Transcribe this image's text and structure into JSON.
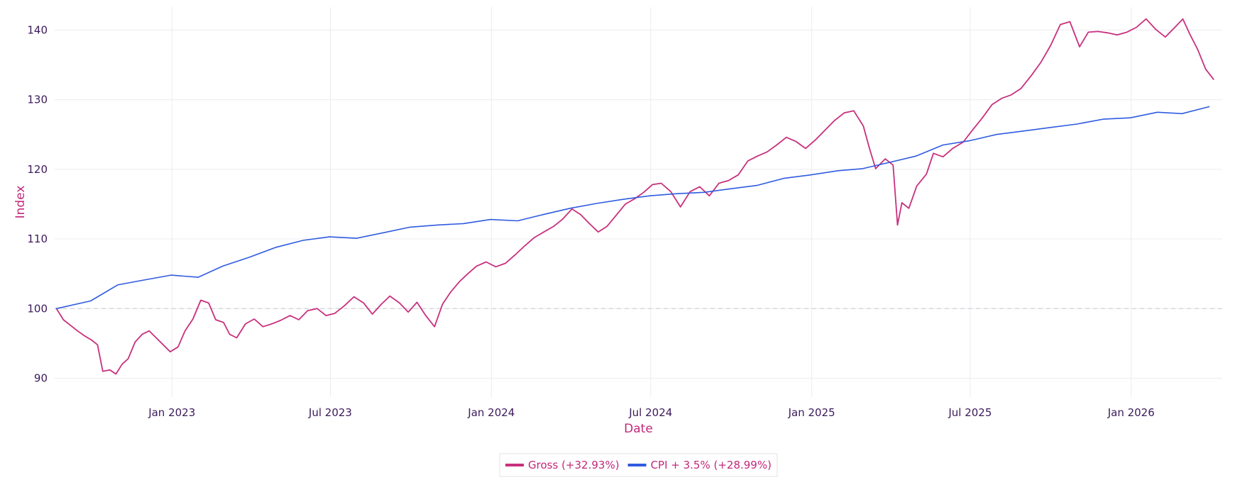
{
  "chart_data": {
    "type": "line",
    "xlabel": "Date",
    "ylabel": "Index",
    "x_tick_labels": [
      "Jan 2023",
      "Jul 2023",
      "Jan 2024",
      "Jul 2024",
      "Jan 2025",
      "Jul 2025",
      "Jan 2026"
    ],
    "x_ticks": [
      "2023-01-01",
      "2023-07-01",
      "2024-01-01",
      "2024-07-01",
      "2025-01-01",
      "2025-07-01",
      "2026-01-01"
    ],
    "xlim": [
      "2022-08-20",
      "2026-04-15"
    ],
    "y_ticks": [
      90,
      100,
      110,
      120,
      130,
      140
    ],
    "ylim": [
      87.3,
      143.3
    ],
    "reference_line": {
      "y": 100,
      "style": "dashed"
    },
    "grid": true,
    "legend_position": "bottom-center",
    "series": [
      {
        "name": "Gross (+32.93%)",
        "color": "#c8307d",
        "points": [
          [
            "2022-08-22",
            100.0
          ],
          [
            "2022-08-30",
            98.4
          ],
          [
            "2022-09-07",
            97.6
          ],
          [
            "2022-09-15",
            96.8
          ],
          [
            "2022-09-23",
            96.1
          ],
          [
            "2022-10-01",
            95.5
          ],
          [
            "2022-10-08",
            94.8
          ],
          [
            "2022-10-14",
            91.0
          ],
          [
            "2022-10-22",
            91.2
          ],
          [
            "2022-10-29",
            90.6
          ],
          [
            "2022-11-05",
            92.0
          ],
          [
            "2022-11-12",
            92.8
          ],
          [
            "2022-11-20",
            95.2
          ],
          [
            "2022-11-28",
            96.3
          ],
          [
            "2022-12-06",
            96.8
          ],
          [
            "2022-12-14",
            95.8
          ],
          [
            "2022-12-22",
            94.8
          ],
          [
            "2022-12-30",
            93.8
          ],
          [
            "2023-01-08",
            94.5
          ],
          [
            "2023-01-16",
            96.8
          ],
          [
            "2023-01-25",
            98.5
          ],
          [
            "2023-02-03",
            101.2
          ],
          [
            "2023-02-12",
            100.8
          ],
          [
            "2023-02-20",
            98.4
          ],
          [
            "2023-03-01",
            98.0
          ],
          [
            "2023-03-08",
            96.3
          ],
          [
            "2023-03-16",
            95.8
          ],
          [
            "2023-03-26",
            97.8
          ],
          [
            "2023-04-05",
            98.5
          ],
          [
            "2023-04-15",
            97.4
          ],
          [
            "2023-04-25",
            97.8
          ],
          [
            "2023-05-05",
            98.3
          ],
          [
            "2023-05-16",
            99.0
          ],
          [
            "2023-05-26",
            98.4
          ],
          [
            "2023-06-05",
            99.7
          ],
          [
            "2023-06-16",
            100.0
          ],
          [
            "2023-06-26",
            99.0
          ],
          [
            "2023-07-06",
            99.3
          ],
          [
            "2023-07-17",
            100.4
          ],
          [
            "2023-07-28",
            101.7
          ],
          [
            "2023-08-08",
            100.8
          ],
          [
            "2023-08-18",
            99.2
          ],
          [
            "2023-08-28",
            100.6
          ],
          [
            "2023-09-07",
            101.8
          ],
          [
            "2023-09-18",
            100.8
          ],
          [
            "2023-09-28",
            99.5
          ],
          [
            "2023-10-08",
            100.9
          ],
          [
            "2023-10-18",
            99.0
          ],
          [
            "2023-10-28",
            97.4
          ],
          [
            "2023-11-06",
            100.6
          ],
          [
            "2023-11-15",
            102.3
          ],
          [
            "2023-11-25",
            103.8
          ],
          [
            "2023-12-05",
            105.0
          ],
          [
            "2023-12-15",
            106.1
          ],
          [
            "2023-12-26",
            106.7
          ],
          [
            "2024-01-06",
            106.0
          ],
          [
            "2024-01-17",
            106.5
          ],
          [
            "2024-01-28",
            107.7
          ],
          [
            "2024-02-08",
            109.0
          ],
          [
            "2024-02-19",
            110.2
          ],
          [
            "2024-03-01",
            111.0
          ],
          [
            "2024-03-12",
            111.8
          ],
          [
            "2024-03-22",
            112.8
          ],
          [
            "2024-04-02",
            114.3
          ],
          [
            "2024-04-12",
            113.5
          ],
          [
            "2024-04-22",
            112.2
          ],
          [
            "2024-05-02",
            111.0
          ],
          [
            "2024-05-12",
            111.8
          ],
          [
            "2024-05-22",
            113.3
          ],
          [
            "2024-06-02",
            115.0
          ],
          [
            "2024-06-13",
            115.8
          ],
          [
            "2024-06-23",
            116.7
          ],
          [
            "2024-07-03",
            117.8
          ],
          [
            "2024-07-13",
            118.0
          ],
          [
            "2024-07-24",
            116.8
          ],
          [
            "2024-08-04",
            114.6
          ],
          [
            "2024-08-15",
            116.8
          ],
          [
            "2024-08-26",
            117.5
          ],
          [
            "2024-09-06",
            116.2
          ],
          [
            "2024-09-17",
            118.0
          ],
          [
            "2024-09-28",
            118.4
          ],
          [
            "2024-10-09",
            119.2
          ],
          [
            "2024-10-20",
            121.2
          ],
          [
            "2024-10-31",
            121.9
          ],
          [
            "2024-11-11",
            122.5
          ],
          [
            "2024-11-22",
            123.5
          ],
          [
            "2024-12-03",
            124.6
          ],
          [
            "2024-12-14",
            124.0
          ],
          [
            "2024-12-25",
            123.0
          ],
          [
            "2025-01-05",
            124.2
          ],
          [
            "2025-01-16",
            125.6
          ],
          [
            "2025-01-27",
            127.0
          ],
          [
            "2025-02-07",
            128.1
          ],
          [
            "2025-02-18",
            128.4
          ],
          [
            "2025-03-01",
            126.2
          ],
          [
            "2025-03-08",
            123.0
          ],
          [
            "2025-03-15",
            120.1
          ],
          [
            "2025-03-26",
            121.5
          ],
          [
            "2025-04-04",
            120.6
          ],
          [
            "2025-04-09",
            112.0
          ],
          [
            "2025-04-14",
            115.2
          ],
          [
            "2025-04-22",
            114.4
          ],
          [
            "2025-05-01",
            117.6
          ],
          [
            "2025-05-12",
            119.3
          ],
          [
            "2025-05-20",
            122.3
          ],
          [
            "2025-05-31",
            121.8
          ],
          [
            "2025-06-11",
            123.0
          ],
          [
            "2025-06-23",
            123.9
          ],
          [
            "2025-07-04",
            125.7
          ],
          [
            "2025-07-15",
            127.4
          ],
          [
            "2025-07-26",
            129.3
          ],
          [
            "2025-08-06",
            130.2
          ],
          [
            "2025-08-17",
            130.7
          ],
          [
            "2025-08-28",
            131.6
          ],
          [
            "2025-09-09",
            133.5
          ],
          [
            "2025-09-20",
            135.4
          ],
          [
            "2025-10-01",
            137.8
          ],
          [
            "2025-10-12",
            140.8
          ],
          [
            "2025-10-23",
            141.2
          ],
          [
            "2025-11-03",
            137.6
          ],
          [
            "2025-11-13",
            139.7
          ],
          [
            "2025-11-24",
            139.8
          ],
          [
            "2025-12-05",
            139.6
          ],
          [
            "2025-12-16",
            139.3
          ],
          [
            "2025-12-27",
            139.7
          ],
          [
            "2026-01-07",
            140.4
          ],
          [
            "2026-01-18",
            141.6
          ],
          [
            "2026-01-29",
            140.1
          ],
          [
            "2026-02-09",
            139.0
          ],
          [
            "2026-02-20",
            140.4
          ],
          [
            "2026-03-01",
            141.6
          ],
          [
            "2026-03-09",
            139.4
          ],
          [
            "2026-03-18",
            137.2
          ],
          [
            "2026-03-27",
            134.4
          ],
          [
            "2026-04-05",
            132.93
          ]
        ]
      },
      {
        "name": "CPI + 3.5% (+28.99%)",
        "color": "#2f5be0",
        "points": [
          [
            "2022-08-22",
            100.0
          ],
          [
            "2022-09-30",
            101.1
          ],
          [
            "2022-10-31",
            103.4
          ],
          [
            "2022-11-30",
            104.1
          ],
          [
            "2022-12-31",
            104.8
          ],
          [
            "2023-01-31",
            104.5
          ],
          [
            "2023-02-28",
            106.1
          ],
          [
            "2023-03-31",
            107.4
          ],
          [
            "2023-04-30",
            108.8
          ],
          [
            "2023-05-31",
            109.8
          ],
          [
            "2023-06-30",
            110.3
          ],
          [
            "2023-07-31",
            110.1
          ],
          [
            "2023-08-31",
            110.9
          ],
          [
            "2023-09-30",
            111.7
          ],
          [
            "2023-10-31",
            112.0
          ],
          [
            "2023-11-30",
            112.2
          ],
          [
            "2023-12-31",
            112.8
          ],
          [
            "2024-01-31",
            112.6
          ],
          [
            "2024-02-29",
            113.5
          ],
          [
            "2024-03-31",
            114.4
          ],
          [
            "2024-04-30",
            115.1
          ],
          [
            "2024-05-31",
            115.7
          ],
          [
            "2024-06-30",
            116.2
          ],
          [
            "2024-07-31",
            116.5
          ],
          [
            "2024-08-31",
            116.7
          ],
          [
            "2024-09-30",
            117.2
          ],
          [
            "2024-10-31",
            117.7
          ],
          [
            "2024-11-30",
            118.7
          ],
          [
            "2024-12-31",
            119.2
          ],
          [
            "2025-01-31",
            119.8
          ],
          [
            "2025-02-28",
            120.1
          ],
          [
            "2025-03-31",
            121.0
          ],
          [
            "2025-04-30",
            121.9
          ],
          [
            "2025-05-31",
            123.5
          ],
          [
            "2025-06-30",
            124.1
          ],
          [
            "2025-07-31",
            125.0
          ],
          [
            "2025-08-31",
            125.5
          ],
          [
            "2025-09-30",
            126.0
          ],
          [
            "2025-10-31",
            126.5
          ],
          [
            "2025-11-30",
            127.2
          ],
          [
            "2025-12-31",
            127.4
          ],
          [
            "2026-01-31",
            128.2
          ],
          [
            "2026-02-28",
            128.0
          ],
          [
            "2026-03-31",
            128.99
          ]
        ]
      }
    ]
  }
}
